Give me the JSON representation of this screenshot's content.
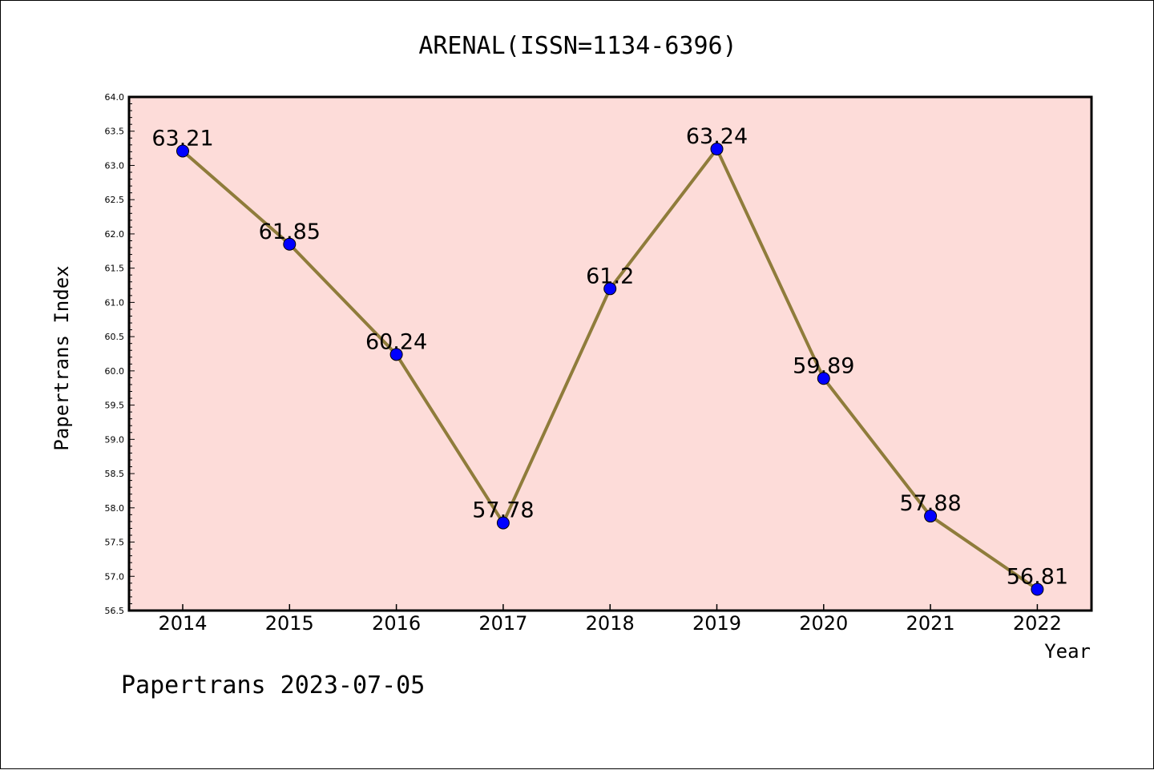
{
  "colors": {
    "plot_background": "#fddcd9",
    "line": "#8f7c3b",
    "marker": "#0000ff",
    "axis": "#000000"
  },
  "footer_text": "Papertrans 2023-07-05",
  "chart_data": {
    "type": "line",
    "title": "ARENAL(ISSN=1134-6396)",
    "xlabel": "Year",
    "ylabel": "Papertrans Index",
    "categories": [
      "2014",
      "2015",
      "2016",
      "2017",
      "2018",
      "2019",
      "2020",
      "2021",
      "2022"
    ],
    "values": [
      63.21,
      61.85,
      60.24,
      57.78,
      61.2,
      63.24,
      59.89,
      57.88,
      56.81
    ],
    "data_labels": [
      "63.21",
      "61.85",
      "60.24",
      "57.78",
      "61.2",
      "63.24",
      "59.89",
      "57.88",
      "56.81"
    ],
    "ylim": [
      56.5,
      64.0
    ],
    "yticks": [
      "56.5",
      "57.0",
      "57.5",
      "58.0",
      "58.5",
      "59.0",
      "59.5",
      "60.0",
      "60.5",
      "61.0",
      "61.5",
      "62.0",
      "62.5",
      "63.0",
      "63.5",
      "64.0"
    ],
    "grid": false,
    "legend": "none"
  }
}
